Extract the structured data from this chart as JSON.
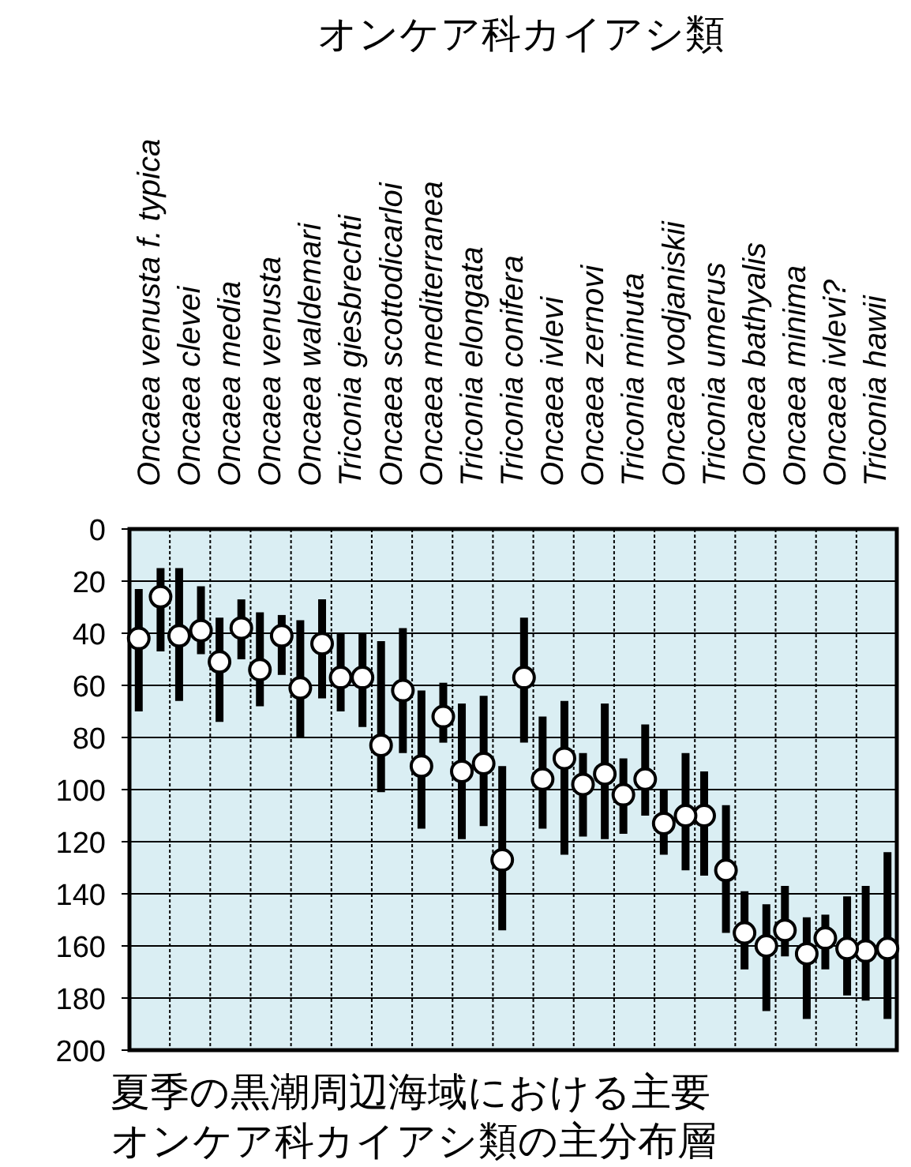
{
  "chart_data": {
    "type": "scatter",
    "title": "オンケア科カイアシ類",
    "categories": [
      "Oncaea venusta f. typica",
      "Oncaea clevei",
      "Oncaea media",
      "Oncaea venusta",
      "Oncaea waldemari",
      "Triconia giesbrechti",
      "Oncaea scottodicarloi",
      "Oncaea mediterranea",
      "Triconia elongata",
      "Triconia conifera",
      "Oncaea ivlevi",
      "Oncaea zernovi",
      "Triconia minuta",
      "Oncaea vodjaniskii",
      "Triconia umerus",
      "Oncaea bathyalis",
      "Oncaea minima",
      "Oncaea ivlevi?",
      "Triconia hawii"
    ],
    "series": [
      {
        "color": "#ffffff",
        "values": [
          42,
          41,
          51,
          54,
          61,
          57,
          83,
          91,
          93,
          127,
          96,
          98,
          102,
          113,
          110,
          155,
          154,
          157,
          162
        ],
        "errors": [
          [
            23,
            70
          ],
          [
            15,
            66
          ],
          [
            34,
            74
          ],
          [
            32,
            68
          ],
          [
            35,
            80
          ],
          [
            40,
            70
          ],
          [
            43,
            101
          ],
          [
            62,
            115
          ],
          [
            67,
            119
          ],
          [
            91,
            154
          ],
          [
            72,
            115
          ],
          [
            86,
            118
          ],
          [
            88,
            117
          ],
          [
            100,
            125
          ],
          [
            93,
            133
          ],
          [
            139,
            169
          ],
          [
            137,
            164
          ],
          [
            148,
            169
          ],
          [
            137,
            181
          ]
        ]
      },
      {
        "color": "#ffffff",
        "values": [
          26,
          39,
          38,
          41,
          44,
          57,
          62,
          72,
          90,
          57,
          88,
          94,
          96,
          110,
          131,
          160,
          163,
          161,
          161
        ],
        "errors": [
          [
            15,
            47
          ],
          [
            22,
            48
          ],
          [
            27,
            50
          ],
          [
            33,
            56
          ],
          [
            27,
            65
          ],
          [
            40,
            76
          ],
          [
            38,
            86
          ],
          [
            59,
            82
          ],
          [
            64,
            114
          ],
          [
            34,
            82
          ],
          [
            66,
            125
          ],
          [
            67,
            119
          ],
          [
            75,
            110
          ],
          [
            86,
            131
          ],
          [
            106,
            155
          ],
          [
            144,
            185
          ],
          [
            149,
            188
          ],
          [
            141,
            179
          ],
          [
            124,
            188
          ]
        ]
      }
    ],
    "ylim": [
      200,
      0
    ],
    "yticks": [
      0,
      20,
      40,
      60,
      80,
      100,
      120,
      140,
      160,
      180,
      200
    ],
    "grid": true,
    "marker": "circle",
    "annotations": [
      "夏季の黒潮周辺海域における主要",
      "オンケア科カイアシ類の主分布層"
    ]
  }
}
